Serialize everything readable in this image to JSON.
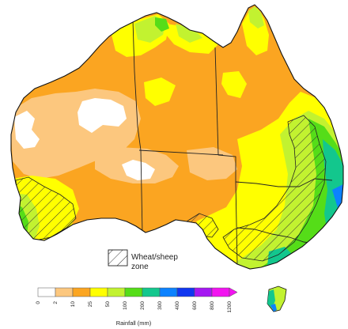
{
  "legend": {
    "zone_label_line1": "Wheat/sheep",
    "zone_label_line2": "zone",
    "scale_title": "Rainfall (mm)",
    "ticks": [
      "0",
      "2",
      "10",
      "25",
      "50",
      "100",
      "200",
      "300",
      "400",
      "600",
      "800",
      "1200"
    ],
    "bins": [
      {
        "from": 0,
        "to": 2,
        "color": "#ffffff"
      },
      {
        "from": 2,
        "to": 10,
        "color": "#fcc77e"
      },
      {
        "from": 10,
        "to": 25,
        "color": "#fba521"
      },
      {
        "from": 25,
        "to": 50,
        "color": "#ffff00"
      },
      {
        "from": 50,
        "to": 100,
        "color": "#c2f230"
      },
      {
        "from": 100,
        "to": 200,
        "color": "#55dd18"
      },
      {
        "from": 200,
        "to": 300,
        "color": "#13c78d"
      },
      {
        "from": 300,
        "to": 400,
        "color": "#0c82ff"
      },
      {
        "from": 400,
        "to": 600,
        "color": "#1036f0"
      },
      {
        "from": 600,
        "to": 800,
        "color": "#a517f2"
      },
      {
        "from": 800,
        "to": 1200,
        "color": "#f213f0"
      }
    ]
  },
  "colors": {
    "coastline": "#111111",
    "state_border": "#222222",
    "hatch": "#333333",
    "lt2": "#ffffff",
    "r2_10": "#fcc77e",
    "r10_25": "#fba521",
    "r25_50": "#ffff00",
    "r50_100": "#c2f230",
    "r100_200": "#55dd18",
    "r200_300": "#13c78d",
    "r300_400": "#0c82ff"
  }
}
